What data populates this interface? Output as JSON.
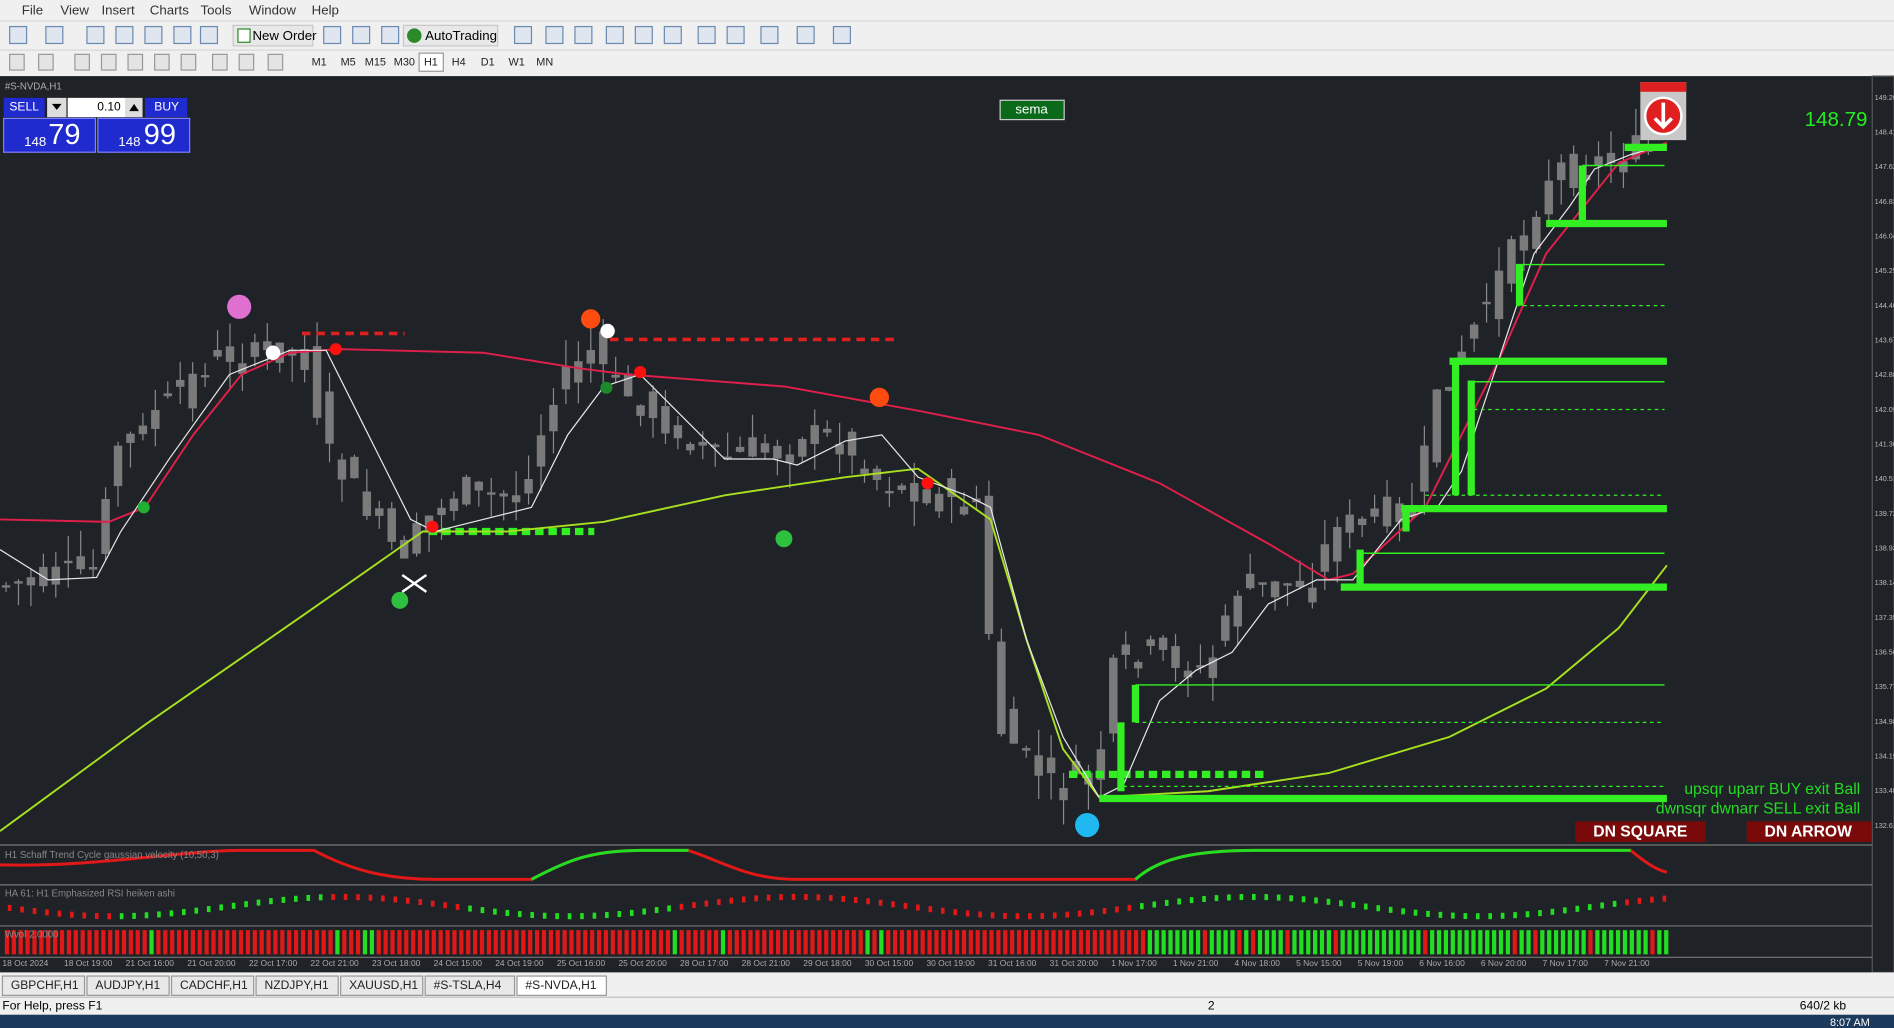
{
  "menu": [
    "File",
    "View",
    "Insert",
    "Charts",
    "Tools",
    "Window",
    "Help"
  ],
  "toolbar": {
    "new_order": "New Order",
    "autotrading": "AutoTrading"
  },
  "timeframes": [
    "M1",
    "M5",
    "M15",
    "M30",
    "H1",
    "H4",
    "D1",
    "W1",
    "MN"
  ],
  "trade_panel": {
    "sell": "SELL",
    "lot": "0.10",
    "buy": "BUY",
    "sell_big": "148",
    "sell_pips": "79",
    "buy_big": "148",
    "buy_pips": "99"
  },
  "chart": {
    "symbol_title": "#S-NVDA,H1",
    "indicator_button": "sema",
    "price_label": "148.79",
    "legend": [
      "upsqr uparr BUY exit Ball",
      "dwnsqr dwnarr SELL exit Ball"
    ],
    "buttons": [
      "DN SQUARE",
      "DN ARROW"
    ],
    "price_axis": [
      "149.20",
      "148.41",
      "147.62",
      "146.83",
      "146.04",
      "145.25",
      "144.46",
      "143.67",
      "142.88",
      "142.09",
      "141.30",
      "140.51",
      "139.72",
      "138.93",
      "138.14",
      "137.35",
      "136.56",
      "135.77",
      "134.98",
      "134.19",
      "133.40",
      "132.61"
    ],
    "subwindows": [
      "H1 Schaff Trend Cycle gaussian velocity (10,50,3)",
      "HA 61: H1 Emphasized RSI heiken ashi",
      "Wvol 2.0000"
    ],
    "x_labels": [
      "18 Oct 2024",
      "18 Oct 19:00",
      "21 Oct 16:00",
      "21 Oct 20:00",
      "22 Oct 17:00",
      "22 Oct 21:00",
      "23 Oct 18:00",
      "24 Oct 15:00",
      "24 Oct 19:00",
      "25 Oct 16:00",
      "25 Oct 20:00",
      "28 Oct 17:00",
      "28 Oct 21:00",
      "29 Oct 18:00",
      "30 Oct 15:00",
      "30 Oct 19:00",
      "31 Oct 16:00",
      "31 Oct 20:00",
      "1 Nov 17:00",
      "1 Nov 21:00",
      "4 Nov 18:00",
      "5 Nov 15:00",
      "5 Nov 19:00",
      "6 Nov 16:00",
      "6 Nov 20:00",
      "7 Nov 17:00",
      "7 Nov 21:00"
    ]
  },
  "tabs": [
    "GBPCHF,H1",
    "AUDJPY,H1",
    "CADCHF,H1",
    "NZDJPY,H1",
    "XAUUSD,H1",
    "#S-TSLA,H4",
    "#S-NVDA,H1"
  ],
  "status": {
    "help": "For Help, press F1",
    "profile": "2",
    "traffic": "640/2 kb",
    "clock": "8:07 AM"
  }
}
